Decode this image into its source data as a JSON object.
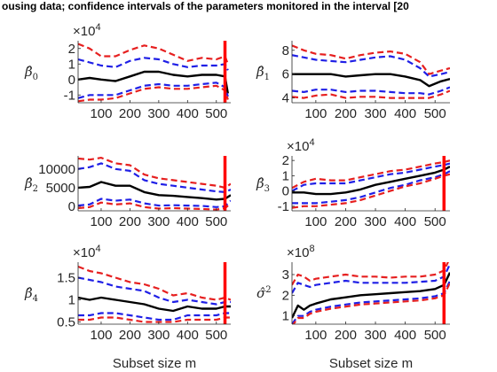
{
  "figure": {
    "title": "ousing data; confidence intervals of the parameters monitored in the interval [20"
  },
  "colors": {
    "median": "#000000",
    "inner": "#1f1fe6",
    "outer": "#e61f1f",
    "vline": "#ff0000",
    "axis": "#262626"
  },
  "chart_data": [
    {
      "type": "line",
      "ylabel": "β̂0",
      "multiplier": "×10^4",
      "xlabel": "",
      "xlim": [
        20,
        550
      ],
      "ylim": [
        -1.5,
        2.5
      ],
      "xticks": [
        100,
        200,
        300,
        400,
        500
      ],
      "yticks": [
        -1,
        0,
        1,
        2
      ],
      "ytick_labels": [
        "-1",
        "0",
        "1",
        "2"
      ],
      "vline_x": 530,
      "x": [
        20,
        60,
        100,
        150,
        200,
        250,
        300,
        350,
        400,
        450,
        500,
        530,
        540
      ],
      "series": [
        {
          "role": "outer-upper",
          "values": [
            2.3,
            2.0,
            1.5,
            1.5,
            1.9,
            2.2,
            2.0,
            1.6,
            1.2,
            1.4,
            1.3,
            1.5,
            1.0
          ]
        },
        {
          "role": "inner-upper",
          "values": [
            1.3,
            1.1,
            0.9,
            0.8,
            1.2,
            1.4,
            1.3,
            1.0,
            0.8,
            0.9,
            0.9,
            1.0,
            0.6
          ]
        },
        {
          "role": "median",
          "values": [
            0.0,
            0.1,
            0.0,
            -0.1,
            0.2,
            0.5,
            0.5,
            0.3,
            0.2,
            0.3,
            0.3,
            0.2,
            -0.9
          ]
        },
        {
          "role": "inner-lower",
          "values": [
            -1.2,
            -1.0,
            -1.0,
            -1.0,
            -0.7,
            -0.4,
            -0.3,
            -0.4,
            -0.4,
            -0.3,
            -0.2,
            -0.5,
            -1.1
          ]
        },
        {
          "role": "outer-lower",
          "values": [
            -1.4,
            -1.3,
            -1.3,
            -1.2,
            -0.9,
            -0.6,
            -0.5,
            -0.6,
            -0.6,
            -0.5,
            -0.4,
            -0.7,
            -1.3
          ]
        }
      ]
    },
    {
      "type": "line",
      "ylabel": "β̂1",
      "multiplier": "",
      "xlabel": "",
      "xlim": [
        20,
        550
      ],
      "ylim": [
        3.6,
        8.8
      ],
      "xticks": [
        100,
        200,
        300,
        400,
        500
      ],
      "yticks": [
        4,
        6,
        8
      ],
      "ytick_labels": [
        "4",
        "6",
        "8"
      ],
      "vline_x": null,
      "x": [
        20,
        60,
        100,
        150,
        200,
        250,
        300,
        350,
        400,
        450,
        480,
        520,
        550
      ],
      "series": [
        {
          "role": "outer-upper",
          "values": [
            8.4,
            8.0,
            7.7,
            7.6,
            7.3,
            7.6,
            7.8,
            7.9,
            7.7,
            7.0,
            6.0,
            6.3,
            6.5
          ]
        },
        {
          "role": "inner-upper",
          "values": [
            7.6,
            7.4,
            7.2,
            7.1,
            7.0,
            7.2,
            7.4,
            7.5,
            7.2,
            6.5,
            5.8,
            6.0,
            6.2
          ]
        },
        {
          "role": "median",
          "values": [
            6.0,
            6.0,
            6.0,
            6.0,
            5.8,
            5.9,
            6.0,
            6.0,
            5.8,
            5.5,
            5.0,
            5.4,
            5.6
          ]
        },
        {
          "role": "inner-lower",
          "values": [
            4.6,
            4.5,
            4.7,
            4.7,
            4.5,
            4.6,
            4.6,
            4.5,
            4.4,
            4.4,
            4.3,
            4.6,
            4.9
          ]
        },
        {
          "role": "outer-lower",
          "values": [
            4.1,
            4.0,
            4.2,
            4.3,
            4.0,
            4.1,
            4.1,
            4.0,
            4.0,
            4.0,
            4.0,
            4.3,
            4.6
          ]
        }
      ]
    },
    {
      "type": "line",
      "ylabel": "β̂2",
      "multiplier": "",
      "xlabel": "",
      "xlim": [
        20,
        550
      ],
      "ylim": [
        -1200,
        13500
      ],
      "xticks": [
        100,
        200,
        300,
        400,
        500
      ],
      "yticks": [
        0,
        5000,
        10000
      ],
      "ytick_labels": [
        "0",
        "5000",
        "10000"
      ],
      "vline_x": 530,
      "x": [
        20,
        60,
        100,
        150,
        200,
        250,
        300,
        350,
        400,
        450,
        500,
        530,
        550
      ],
      "series": [
        {
          "role": "outer-upper",
          "values": [
            12800,
            12500,
            13000,
            11500,
            11000,
            8500,
            7500,
            7000,
            6500,
            6000,
            5500,
            5000,
            6000
          ]
        },
        {
          "role": "inner-upper",
          "values": [
            10000,
            10500,
            11500,
            10000,
            9500,
            7000,
            6000,
            5500,
            5000,
            4500,
            4000,
            3800,
            4500
          ]
        },
        {
          "role": "median",
          "values": [
            5000,
            5200,
            6500,
            5500,
            5500,
            3800,
            3000,
            2800,
            2500,
            2200,
            1800,
            2000,
            3000
          ]
        },
        {
          "role": "inner-lower",
          "values": [
            200,
            500,
            2000,
            1500,
            1800,
            800,
            200,
            300,
            200,
            100,
            -200,
            0,
            1500
          ]
        },
        {
          "role": "outer-lower",
          "values": [
            -500,
            -200,
            1000,
            500,
            800,
            -200,
            -600,
            -500,
            -600,
            -700,
            -900,
            -500,
            800
          ]
        }
      ]
    },
    {
      "type": "line",
      "ylabel": "β̂3",
      "multiplier": "×10^4",
      "xlabel": "",
      "xlim": [
        20,
        550
      ],
      "ylim": [
        -1.3,
        2.3
      ],
      "xticks": [
        100,
        200,
        300,
        400,
        500
      ],
      "yticks": [
        -1,
        0,
        1,
        2
      ],
      "ytick_labels": [
        "-1",
        "0",
        "1",
        "2"
      ],
      "vline_x": 530,
      "x": [
        20,
        60,
        100,
        150,
        200,
        250,
        300,
        350,
        400,
        450,
        500,
        530,
        550
      ],
      "series": [
        {
          "role": "outer-upper",
          "values": [
            0.2,
            0.6,
            0.8,
            0.7,
            0.7,
            0.9,
            1.1,
            1.3,
            1.4,
            1.6,
            1.8,
            1.9,
            2.0
          ]
        },
        {
          "role": "inner-upper",
          "values": [
            0.0,
            0.4,
            0.5,
            0.5,
            0.5,
            0.7,
            0.9,
            1.1,
            1.2,
            1.4,
            1.6,
            1.7,
            1.8
          ]
        },
        {
          "role": "median",
          "values": [
            -0.1,
            -0.1,
            -0.2,
            -0.2,
            -0.1,
            0.1,
            0.4,
            0.6,
            0.8,
            1.0,
            1.2,
            1.4,
            1.6
          ]
        },
        {
          "role": "inner-lower",
          "values": [
            -0.8,
            -0.8,
            -0.8,
            -0.7,
            -0.6,
            -0.4,
            -0.1,
            0.2,
            0.4,
            0.7,
            0.9,
            1.1,
            1.3
          ]
        },
        {
          "role": "outer-lower",
          "values": [
            -1.1,
            -1.0,
            -1.0,
            -0.9,
            -0.8,
            -0.6,
            -0.3,
            0.0,
            0.3,
            0.5,
            0.8,
            1.0,
            1.1
          ]
        }
      ]
    },
    {
      "type": "line",
      "ylabel": "β̂4",
      "multiplier": "×10^4",
      "xlabel": "Subset size m",
      "xlim": [
        20,
        550
      ],
      "ylim": [
        0.45,
        1.85
      ],
      "xticks": [
        100,
        200,
        300,
        400,
        500
      ],
      "yticks": [
        0.5,
        1,
        1.5
      ],
      "ytick_labels": [
        "0.5",
        "1",
        "1.5"
      ],
      "vline_x": 530,
      "x": [
        20,
        60,
        100,
        150,
        200,
        250,
        300,
        350,
        400,
        450,
        500,
        530,
        550
      ],
      "series": [
        {
          "role": "outer-upper",
          "values": [
            1.75,
            1.65,
            1.6,
            1.5,
            1.4,
            1.35,
            1.25,
            1.1,
            1.15,
            1.05,
            1.0,
            1.05,
            1.0
          ]
        },
        {
          "role": "inner-upper",
          "values": [
            1.5,
            1.45,
            1.4,
            1.3,
            1.25,
            1.2,
            1.05,
            0.95,
            1.0,
            0.95,
            0.9,
            0.95,
            0.95
          ]
        },
        {
          "role": "median",
          "values": [
            1.05,
            1.0,
            1.05,
            1.0,
            0.95,
            0.9,
            0.8,
            0.75,
            0.85,
            0.8,
            0.8,
            0.85,
            0.85
          ]
        },
        {
          "role": "inner-lower",
          "values": [
            0.65,
            0.65,
            0.7,
            0.7,
            0.65,
            0.6,
            0.55,
            0.55,
            0.65,
            0.65,
            0.65,
            0.7,
            0.7
          ]
        },
        {
          "role": "outer-lower",
          "values": [
            0.55,
            0.55,
            0.6,
            0.6,
            0.55,
            0.5,
            0.5,
            0.5,
            0.55,
            0.55,
            0.55,
            0.6,
            0.6
          ]
        }
      ]
    },
    {
      "type": "line",
      "ylabel": "σ̂2",
      "multiplier": "×10^8",
      "xlabel": "Subset size m",
      "xlim": [
        20,
        550
      ],
      "ylim": [
        0.6,
        3.6
      ],
      "xticks": [
        100,
        200,
        300,
        400,
        500
      ],
      "yticks": [
        1,
        2,
        3
      ],
      "ytick_labels": [
        "1",
        "2",
        "3"
      ],
      "vline_x": 530,
      "x": [
        20,
        40,
        60,
        80,
        100,
        150,
        200,
        250,
        300,
        350,
        400,
        450,
        500,
        530,
        550
      ],
      "series": [
        {
          "role": "outer-upper",
          "values": [
            2.5,
            3.0,
            2.9,
            2.7,
            2.8,
            2.9,
            3.0,
            2.9,
            2.9,
            2.85,
            2.9,
            2.9,
            3.0,
            3.2,
            3.8
          ]
        },
        {
          "role": "inner-upper",
          "values": [
            2.1,
            2.6,
            2.5,
            2.4,
            2.5,
            2.6,
            2.7,
            2.6,
            2.6,
            2.6,
            2.6,
            2.65,
            2.7,
            2.9,
            3.5
          ]
        },
        {
          "role": "median",
          "values": [
            0.9,
            1.5,
            1.3,
            1.5,
            1.6,
            1.8,
            1.9,
            2.0,
            2.05,
            2.1,
            2.15,
            2.2,
            2.3,
            2.5,
            3.1
          ]
        },
        {
          "role": "inner-lower",
          "values": [
            0.6,
            1.0,
            1.0,
            1.2,
            1.3,
            1.45,
            1.55,
            1.65,
            1.7,
            1.75,
            1.8,
            1.85,
            1.95,
            2.1,
            2.7
          ]
        },
        {
          "role": "outer-lower",
          "values": [
            0.5,
            0.9,
            0.9,
            1.1,
            1.2,
            1.35,
            1.45,
            1.55,
            1.6,
            1.65,
            1.7,
            1.75,
            1.85,
            2.0,
            2.6
          ]
        }
      ]
    }
  ]
}
